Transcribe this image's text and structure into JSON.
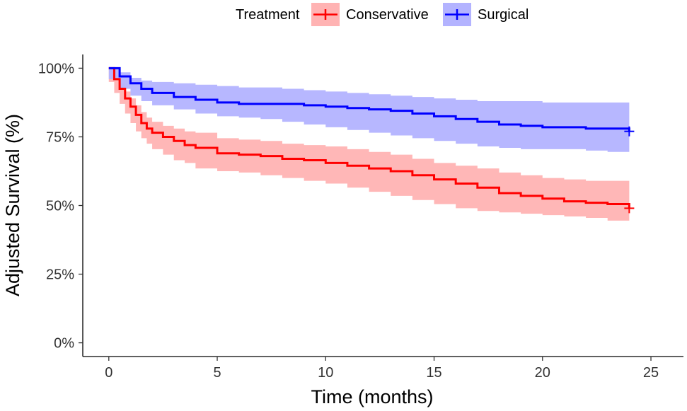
{
  "chart_data": {
    "type": "line",
    "subtype": "kaplan-meier-step",
    "title": "",
    "xlabel": "Time (months)",
    "ylabel": "Adjusted Survival (%)",
    "xlim": [
      -1.2,
      26.5
    ],
    "ylim": [
      -0.05,
      1.05
    ],
    "x_ticks": [
      0,
      5,
      10,
      15,
      20,
      25
    ],
    "x_tick_labels": [
      "0",
      "5",
      "10",
      "15",
      "20",
      "25"
    ],
    "y_ticks": [
      0,
      0.25,
      0.5,
      0.75,
      1.0
    ],
    "y_tick_labels": [
      "0%",
      "25%",
      "50%",
      "75%",
      "100%"
    ],
    "grid": false,
    "legend": {
      "title": "Treatment",
      "position": "top",
      "entries": [
        "Conservative",
        "Surgical"
      ]
    },
    "series": [
      {
        "name": "Conservative",
        "color": "#ff0000",
        "band_color": "#ffb3b3",
        "x": [
          0,
          0.25,
          0.5,
          0.75,
          1.0,
          1.25,
          1.5,
          1.75,
          2.0,
          2.5,
          3.0,
          3.5,
          4.0,
          5.0,
          6.0,
          7.0,
          8.0,
          9.0,
          10.0,
          11.0,
          12.0,
          13.0,
          14.0,
          15.0,
          16.0,
          17.0,
          18.0,
          19.0,
          20.0,
          21.0,
          22.0,
          23.0,
          24.0
        ],
        "y": [
          1.0,
          0.96,
          0.925,
          0.89,
          0.86,
          0.83,
          0.8,
          0.78,
          0.765,
          0.75,
          0.735,
          0.72,
          0.71,
          0.69,
          0.685,
          0.68,
          0.67,
          0.665,
          0.655,
          0.645,
          0.635,
          0.625,
          0.61,
          0.595,
          0.58,
          0.565,
          0.545,
          0.535,
          0.525,
          0.515,
          0.51,
          0.505,
          0.49
        ],
        "lower": [
          1.0,
          0.95,
          0.91,
          0.87,
          0.835,
          0.8,
          0.77,
          0.745,
          0.725,
          0.705,
          0.685,
          0.665,
          0.655,
          0.635,
          0.625,
          0.62,
          0.61,
          0.6,
          0.59,
          0.58,
          0.565,
          0.55,
          0.535,
          0.52,
          0.505,
          0.49,
          0.48,
          0.475,
          0.47,
          0.465,
          0.46,
          0.455,
          0.445
        ],
        "upper": [
          1.0,
          0.975,
          0.945,
          0.915,
          0.89,
          0.865,
          0.84,
          0.82,
          0.805,
          0.79,
          0.78,
          0.77,
          0.765,
          0.745,
          0.74,
          0.735,
          0.725,
          0.72,
          0.715,
          0.705,
          0.695,
          0.685,
          0.67,
          0.655,
          0.645,
          0.635,
          0.62,
          0.61,
          0.6,
          0.595,
          0.59,
          0.59,
          0.59
        ],
        "censor_mark": {
          "x": 24.0,
          "y": 0.49
        }
      },
      {
        "name": "Surgical",
        "color": "#0000ff",
        "band_color": "#b3b3ff",
        "x": [
          0,
          0.5,
          1.0,
          1.5,
          2.0,
          3.0,
          4.0,
          5.0,
          6.0,
          7.0,
          8.0,
          9.0,
          10.0,
          11.0,
          12.0,
          13.0,
          14.0,
          15.0,
          16.0,
          17.0,
          18.0,
          19.0,
          20.0,
          21.0,
          22.0,
          23.0,
          24.0
        ],
        "y": [
          1.0,
          0.97,
          0.945,
          0.925,
          0.91,
          0.895,
          0.885,
          0.875,
          0.87,
          0.87,
          0.87,
          0.865,
          0.86,
          0.855,
          0.85,
          0.845,
          0.835,
          0.825,
          0.815,
          0.805,
          0.795,
          0.79,
          0.785,
          0.785,
          0.78,
          0.78,
          0.77
        ],
        "lower": [
          1.0,
          0.96,
          0.925,
          0.9,
          0.88,
          0.865,
          0.85,
          0.835,
          0.825,
          0.82,
          0.815,
          0.805,
          0.795,
          0.785,
          0.775,
          0.765,
          0.755,
          0.745,
          0.735,
          0.725,
          0.715,
          0.71,
          0.705,
          0.705,
          0.705,
          0.7,
          0.695
        ],
        "upper": [
          1.0,
          0.985,
          0.965,
          0.955,
          0.95,
          0.945,
          0.94,
          0.935,
          0.93,
          0.93,
          0.925,
          0.92,
          0.915,
          0.91,
          0.905,
          0.9,
          0.895,
          0.89,
          0.885,
          0.88,
          0.88,
          0.88,
          0.875,
          0.875,
          0.875,
          0.875,
          0.87
        ],
        "censor_mark": {
          "x": 24.0,
          "y": 0.77
        }
      }
    ]
  }
}
